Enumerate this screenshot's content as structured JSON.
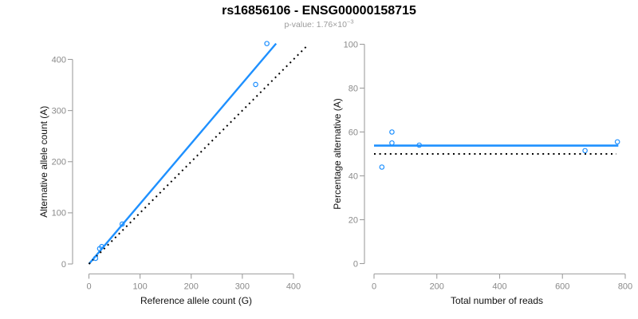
{
  "header": {
    "title": "rs16856106 - ENSG00000158715",
    "p_value_prefix": "p-value: 1.76×10",
    "p_value_exponent": "−3"
  },
  "colors": {
    "accent_blue": "#1E90FF",
    "reference_black": "#000000",
    "axis_line": "#9e9e9e",
    "tick_text": "#8a8a8a",
    "axis_label_text": "#111111",
    "subtitle_text": "#9b9b9b",
    "background": "#ffffff"
  },
  "chart_data": [
    {
      "type": "scatter",
      "panel": "left",
      "xlabel": "Reference allele count (G)",
      "ylabel": "Alternative allele count (A)",
      "xticks": [
        0,
        100,
        200,
        300,
        400
      ],
      "yticks": [
        0,
        100,
        200,
        300,
        400
      ],
      "xlim": [
        0,
        430
      ],
      "ylim": [
        0,
        440
      ],
      "points": [
        [
          13,
          11
        ],
        [
          21,
          30
        ],
        [
          25,
          34
        ],
        [
          65,
          78
        ],
        [
          326,
          351
        ],
        [
          348,
          431
        ]
      ],
      "lines": [
        {
          "name": "regression-line",
          "style": "solid",
          "color": "#1E90FF",
          "width": 2.4,
          "x": [
            0,
            366
          ],
          "y": [
            0,
            431
          ]
        },
        {
          "name": "identity-line",
          "style": "dotted",
          "color": "#000000",
          "width": 2,
          "x": [
            0,
            428
          ],
          "y": [
            0,
            428
          ]
        }
      ]
    },
    {
      "type": "scatter",
      "panel": "right",
      "xlabel": "Total number of reads",
      "ylabel": "Percentage alternative (A)",
      "xticks": [
        0,
        200,
        400,
        600,
        800
      ],
      "yticks": [
        0,
        20,
        40,
        60,
        80,
        100
      ],
      "xlim": [
        0,
        800
      ],
      "ylim": [
        0,
        100
      ],
      "points": [
        [
          25,
          44
        ],
        [
          57,
          60
        ],
        [
          57,
          55
        ],
        [
          144,
          54
        ],
        [
          672,
          51.5
        ],
        [
          775,
          55.5
        ]
      ],
      "lines": [
        {
          "name": "mean-line",
          "style": "solid",
          "color": "#1E90FF",
          "width": 2.6,
          "x": [
            0,
            778
          ],
          "y": [
            53.8,
            53.8
          ]
        },
        {
          "name": "null-line",
          "style": "dotted",
          "color": "#000000",
          "width": 2,
          "x": [
            0,
            772
          ],
          "y": [
            50,
            50
          ]
        }
      ]
    }
  ]
}
